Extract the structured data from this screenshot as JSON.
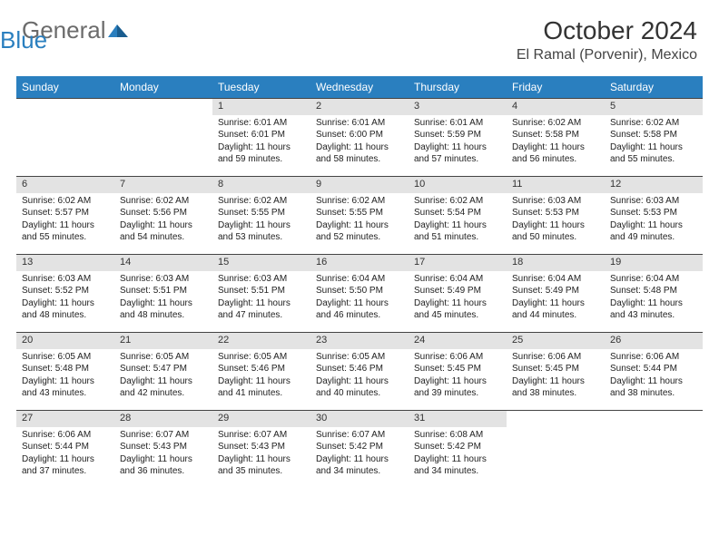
{
  "logo": {
    "part1": "General",
    "part2": "Blue"
  },
  "header": {
    "title": "October 2024",
    "subtitle": "El Ramal (Porvenir), Mexico"
  },
  "colors": {
    "header_bg": "#2a7fbf",
    "header_text": "#ffffff",
    "daynum_bg": "#e3e3e3",
    "border": "#444444",
    "logo_gray": "#6b6b6b",
    "logo_blue": "#2a7fbf"
  },
  "weekdays": [
    "Sunday",
    "Monday",
    "Tuesday",
    "Wednesday",
    "Thursday",
    "Friday",
    "Saturday"
  ],
  "weeks": [
    [
      null,
      null,
      {
        "n": "1",
        "sr": "6:01 AM",
        "ss": "6:01 PM",
        "dl": "11 hours and 59 minutes."
      },
      {
        "n": "2",
        "sr": "6:01 AM",
        "ss": "6:00 PM",
        "dl": "11 hours and 58 minutes."
      },
      {
        "n": "3",
        "sr": "6:01 AM",
        "ss": "5:59 PM",
        "dl": "11 hours and 57 minutes."
      },
      {
        "n": "4",
        "sr": "6:02 AM",
        "ss": "5:58 PM",
        "dl": "11 hours and 56 minutes."
      },
      {
        "n": "5",
        "sr": "6:02 AM",
        "ss": "5:58 PM",
        "dl": "11 hours and 55 minutes."
      }
    ],
    [
      {
        "n": "6",
        "sr": "6:02 AM",
        "ss": "5:57 PM",
        "dl": "11 hours and 55 minutes."
      },
      {
        "n": "7",
        "sr": "6:02 AM",
        "ss": "5:56 PM",
        "dl": "11 hours and 54 minutes."
      },
      {
        "n": "8",
        "sr": "6:02 AM",
        "ss": "5:55 PM",
        "dl": "11 hours and 53 minutes."
      },
      {
        "n": "9",
        "sr": "6:02 AM",
        "ss": "5:55 PM",
        "dl": "11 hours and 52 minutes."
      },
      {
        "n": "10",
        "sr": "6:02 AM",
        "ss": "5:54 PM",
        "dl": "11 hours and 51 minutes."
      },
      {
        "n": "11",
        "sr": "6:03 AM",
        "ss": "5:53 PM",
        "dl": "11 hours and 50 minutes."
      },
      {
        "n": "12",
        "sr": "6:03 AM",
        "ss": "5:53 PM",
        "dl": "11 hours and 49 minutes."
      }
    ],
    [
      {
        "n": "13",
        "sr": "6:03 AM",
        "ss": "5:52 PM",
        "dl": "11 hours and 48 minutes."
      },
      {
        "n": "14",
        "sr": "6:03 AM",
        "ss": "5:51 PM",
        "dl": "11 hours and 48 minutes."
      },
      {
        "n": "15",
        "sr": "6:03 AM",
        "ss": "5:51 PM",
        "dl": "11 hours and 47 minutes."
      },
      {
        "n": "16",
        "sr": "6:04 AM",
        "ss": "5:50 PM",
        "dl": "11 hours and 46 minutes."
      },
      {
        "n": "17",
        "sr": "6:04 AM",
        "ss": "5:49 PM",
        "dl": "11 hours and 45 minutes."
      },
      {
        "n": "18",
        "sr": "6:04 AM",
        "ss": "5:49 PM",
        "dl": "11 hours and 44 minutes."
      },
      {
        "n": "19",
        "sr": "6:04 AM",
        "ss": "5:48 PM",
        "dl": "11 hours and 43 minutes."
      }
    ],
    [
      {
        "n": "20",
        "sr": "6:05 AM",
        "ss": "5:48 PM",
        "dl": "11 hours and 43 minutes."
      },
      {
        "n": "21",
        "sr": "6:05 AM",
        "ss": "5:47 PM",
        "dl": "11 hours and 42 minutes."
      },
      {
        "n": "22",
        "sr": "6:05 AM",
        "ss": "5:46 PM",
        "dl": "11 hours and 41 minutes."
      },
      {
        "n": "23",
        "sr": "6:05 AM",
        "ss": "5:46 PM",
        "dl": "11 hours and 40 minutes."
      },
      {
        "n": "24",
        "sr": "6:06 AM",
        "ss": "5:45 PM",
        "dl": "11 hours and 39 minutes."
      },
      {
        "n": "25",
        "sr": "6:06 AM",
        "ss": "5:45 PM",
        "dl": "11 hours and 38 minutes."
      },
      {
        "n": "26",
        "sr": "6:06 AM",
        "ss": "5:44 PM",
        "dl": "11 hours and 38 minutes."
      }
    ],
    [
      {
        "n": "27",
        "sr": "6:06 AM",
        "ss": "5:44 PM",
        "dl": "11 hours and 37 minutes."
      },
      {
        "n": "28",
        "sr": "6:07 AM",
        "ss": "5:43 PM",
        "dl": "11 hours and 36 minutes."
      },
      {
        "n": "29",
        "sr": "6:07 AM",
        "ss": "5:43 PM",
        "dl": "11 hours and 35 minutes."
      },
      {
        "n": "30",
        "sr": "6:07 AM",
        "ss": "5:42 PM",
        "dl": "11 hours and 34 minutes."
      },
      {
        "n": "31",
        "sr": "6:08 AM",
        "ss": "5:42 PM",
        "dl": "11 hours and 34 minutes."
      },
      null,
      null
    ]
  ],
  "labels": {
    "sunrise": "Sunrise:",
    "sunset": "Sunset:",
    "daylight": "Daylight:"
  }
}
